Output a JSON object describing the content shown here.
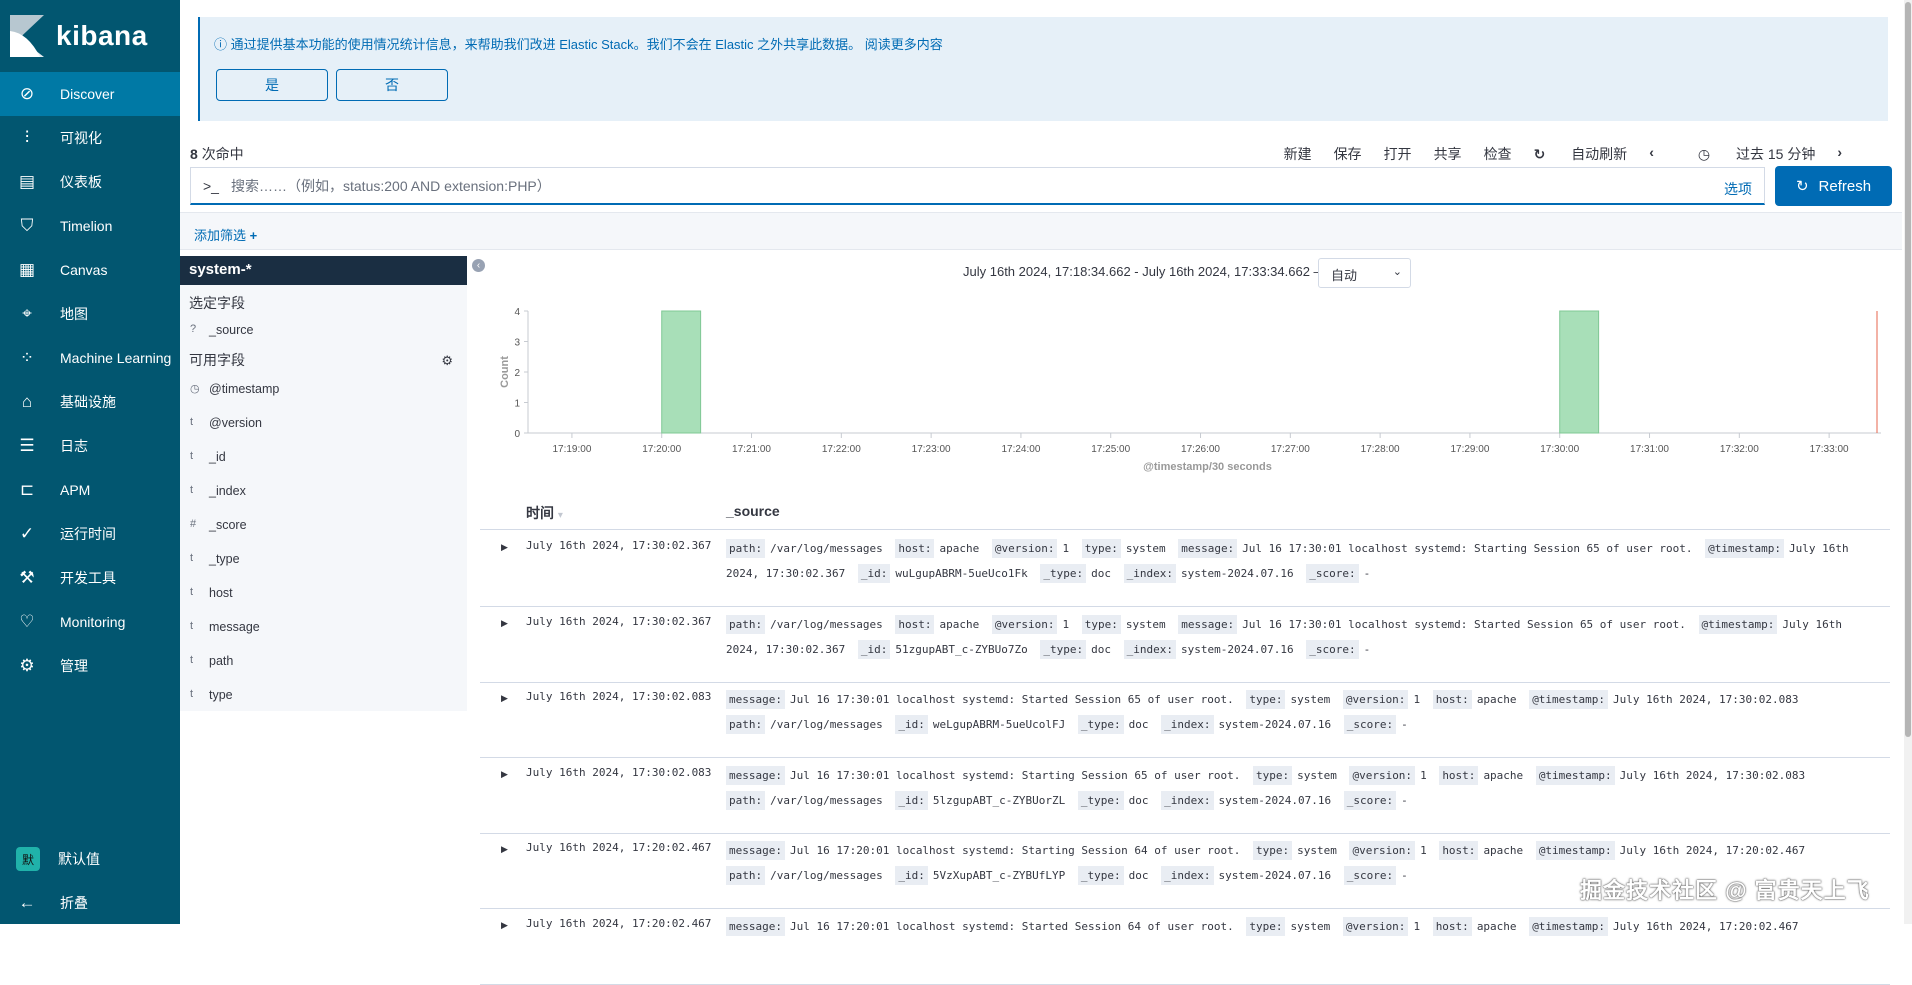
{
  "app": {
    "name": "kibana"
  },
  "sidebar": {
    "items": [
      {
        "label": "Discover",
        "icon": "compass-icon",
        "active": true
      },
      {
        "label": "可视化",
        "icon": "visualize-icon"
      },
      {
        "label": "仪表板",
        "icon": "dashboard-icon"
      },
      {
        "label": "Timelion",
        "icon": "timelion-icon"
      },
      {
        "label": "Canvas",
        "icon": "canvas-icon"
      },
      {
        "label": "地图",
        "icon": "map-icon"
      },
      {
        "label": "Machine Learning",
        "icon": "ml-icon"
      },
      {
        "label": "基础设施",
        "icon": "infrastructure-icon"
      },
      {
        "label": "日志",
        "icon": "logs-icon"
      },
      {
        "label": "APM",
        "icon": "apm-icon"
      },
      {
        "label": "运行时间",
        "icon": "uptime-icon"
      },
      {
        "label": "开发工具",
        "icon": "devtools-icon"
      },
      {
        "label": "Monitoring",
        "icon": "monitoring-icon"
      },
      {
        "label": "管理",
        "icon": "gear-icon"
      }
    ],
    "space": {
      "avatar": "默",
      "label": "默认值"
    },
    "collapse_label": "折叠"
  },
  "banner": {
    "text": "通过提供基本功能的使用情况统计信息，来帮助我们改进 Elastic Stack。我们不会在 Elastic 之外共享此数据。 阅读更多内容",
    "yes": "是",
    "no": "否"
  },
  "hits": {
    "count": "8",
    "label": "次命中"
  },
  "topnav": {
    "new": "新建",
    "save": "保存",
    "open": "打开",
    "share": "共享",
    "inspect": "检查",
    "auto_refresh": "自动刷新",
    "time": "过去 15 分钟"
  },
  "search": {
    "prompt": ">_",
    "placeholder": "搜索……（例如，status:200 AND extension:PHP）",
    "value": "",
    "options": "选项",
    "refresh": "Refresh"
  },
  "filter": {
    "add": "添加筛选"
  },
  "fields": {
    "index": "system-*",
    "selected_title": "选定字段",
    "selected": [
      {
        "type": "?",
        "name": "_source"
      }
    ],
    "available_title": "可用字段",
    "available": [
      {
        "type": "clock",
        "name": "@timestamp"
      },
      {
        "type": "t",
        "name": "@version"
      },
      {
        "type": "t",
        "name": "_id"
      },
      {
        "type": "t",
        "name": "_index"
      },
      {
        "type": "#",
        "name": "_score"
      },
      {
        "type": "t",
        "name": "_type"
      },
      {
        "type": "t",
        "name": "host"
      },
      {
        "type": "t",
        "name": "message"
      },
      {
        "type": "t",
        "name": "path"
      },
      {
        "type": "t",
        "name": "type"
      }
    ]
  },
  "histogram": {
    "range_label": "July 16th 2024, 17:18:34.662 - July 16th 2024, 17:33:34.662 —",
    "interval": "自动"
  },
  "chart_data": {
    "type": "bar",
    "xlabel": "@timestamp/30 seconds",
    "ylabel": "Count",
    "xlim": [
      "17:18:34.662",
      "17:33:34.662"
    ],
    "ylim": [
      0,
      4
    ],
    "yticks": [
      "0",
      "1",
      "2",
      "3",
      "4"
    ],
    "xticks": [
      "17:19:00",
      "17:20:00",
      "17:21:00",
      "17:22:00",
      "17:23:00",
      "17:24:00",
      "17:25:00",
      "17:26:00",
      "17:27:00",
      "17:28:00",
      "17:29:00",
      "17:30:00",
      "17:31:00",
      "17:32:00",
      "17:33:00"
    ],
    "bucket_seconds": 30,
    "bars": [
      {
        "x": "17:20:00",
        "value": 4
      },
      {
        "x": "17:30:00",
        "value": 4
      }
    ],
    "bar_color": "#a8dfb8",
    "now_marker_color": "#e7664c",
    "grid": false
  },
  "table": {
    "headers": {
      "time": "时间",
      "source": "_source"
    },
    "rows": [
      {
        "time": "July 16th 2024, 17:30:02.367",
        "source": [
          [
            "path:",
            "/var/log/messages"
          ],
          [
            "host:",
            "apache"
          ],
          [
            "@version:",
            "1"
          ],
          [
            "type:",
            "system"
          ],
          [
            "message:",
            "Jul 16 17:30:01 localhost systemd: Starting Session 65 of user root."
          ],
          [
            "@timestamp:",
            "July 16th 2024, 17:30:02.367"
          ],
          [
            "_id:",
            "wuLgupABRM-5ueUco1Fk"
          ],
          [
            "_type:",
            "doc"
          ],
          [
            "_index:",
            "system-2024.07.16"
          ],
          [
            "_score:",
            "-"
          ]
        ]
      },
      {
        "time": "July 16th 2024, 17:30:02.367",
        "source": [
          [
            "path:",
            "/var/log/messages"
          ],
          [
            "host:",
            "apache"
          ],
          [
            "@version:",
            "1"
          ],
          [
            "type:",
            "system"
          ],
          [
            "message:",
            "Jul 16 17:30:01 localhost systemd: Started Session 65 of user root."
          ],
          [
            "@timestamp:",
            "July 16th 2024, 17:30:02.367"
          ],
          [
            "_id:",
            "51zgupABT_c-ZYBUo7Zo"
          ],
          [
            "_type:",
            "doc"
          ],
          [
            "_index:",
            "system-2024.07.16"
          ],
          [
            "_score:",
            "-"
          ]
        ]
      },
      {
        "time": "July 16th 2024, 17:30:02.083",
        "source": [
          [
            "message:",
            "Jul 16 17:30:01 localhost systemd: Started Session 65 of user root."
          ],
          [
            "type:",
            "system"
          ],
          [
            "@version:",
            "1"
          ],
          [
            "host:",
            "apache"
          ],
          [
            "@timestamp:",
            "July 16th 2024, 17:30:02.083"
          ],
          [
            "path:",
            "/var/log/messages"
          ],
          [
            "_id:",
            "weLgupABRM-5ueUcolFJ"
          ],
          [
            "_type:",
            "doc"
          ],
          [
            "_index:",
            "system-2024.07.16"
          ],
          [
            "_score:",
            "-"
          ]
        ]
      },
      {
        "time": "July 16th 2024, 17:30:02.083",
        "source": [
          [
            "message:",
            "Jul 16 17:30:01 localhost systemd: Starting Session 65 of user root."
          ],
          [
            "type:",
            "system"
          ],
          [
            "@version:",
            "1"
          ],
          [
            "host:",
            "apache"
          ],
          [
            "@timestamp:",
            "July 16th 2024, 17:30:02.083"
          ],
          [
            "path:",
            "/var/log/messages"
          ],
          [
            "_id:",
            "5lzgupABT_c-ZYBUorZL"
          ],
          [
            "_type:",
            "doc"
          ],
          [
            "_index:",
            "system-2024.07.16"
          ],
          [
            "_score:",
            "-"
          ]
        ]
      },
      {
        "time": "July 16th 2024, 17:20:02.467",
        "source": [
          [
            "message:",
            "Jul 16 17:20:01 localhost systemd: Starting Session 64 of user root."
          ],
          [
            "type:",
            "system"
          ],
          [
            "@version:",
            "1"
          ],
          [
            "host:",
            "apache"
          ],
          [
            "@timestamp:",
            "July 16th 2024, 17:20:02.467"
          ],
          [
            "path:",
            "/var/log/messages"
          ],
          [
            "_id:",
            "5VzXupABT_c-ZYBUfLYP"
          ],
          [
            "_type:",
            "doc"
          ],
          [
            "_index:",
            "system-2024.07.16"
          ],
          [
            "_score:",
            "-"
          ]
        ]
      },
      {
        "time": "July 16th 2024, 17:20:02.467",
        "source": [
          [
            "message:",
            "Jul 16 17:20:01 localhost systemd: Started Session 64 of user root."
          ],
          [
            "type:",
            "system"
          ],
          [
            "@version:",
            "1"
          ],
          [
            "host:",
            "apache"
          ],
          [
            "@timestamp:",
            "July 16th 2024, 17:20:02.467"
          ]
        ]
      }
    ]
  },
  "watermark": "掘金技术社区 @ 富贵天上飞"
}
